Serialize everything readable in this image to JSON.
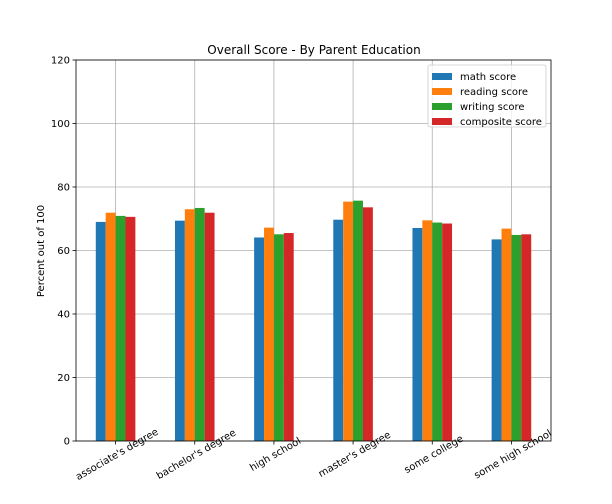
{
  "chart_data": {
    "type": "bar",
    "title": "Overall Score - By Parent Education",
    "xlabel": "",
    "ylabel": "Percent out of 100",
    "ylim": [
      0,
      120
    ],
    "yticks": [
      0,
      20,
      40,
      60,
      80,
      100,
      120
    ],
    "grid": true,
    "legend_position": "top-right",
    "categories": [
      "associate's degree",
      "bachelor's degree",
      "high school",
      "master's degree",
      "some college",
      "some high school"
    ],
    "series": [
      {
        "name": "math score",
        "color": "#1f77b4",
        "values": [
          69.0,
          69.4,
          64.1,
          69.7,
          67.1,
          63.5
        ]
      },
      {
        "name": "reading score",
        "color": "#ff7f0e",
        "values": [
          71.9,
          73.0,
          67.2,
          75.4,
          69.5,
          66.9
        ]
      },
      {
        "name": "writing score",
        "color": "#2ca02c",
        "values": [
          70.9,
          73.4,
          65.1,
          75.7,
          68.8,
          64.9
        ]
      },
      {
        "name": "composite score",
        "color": "#d62728",
        "values": [
          70.6,
          71.9,
          65.5,
          73.6,
          68.5,
          65.1
        ]
      }
    ]
  }
}
